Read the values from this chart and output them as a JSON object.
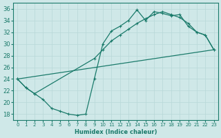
{
  "xlabel": "Humidex (Indice chaleur)",
  "xlim": [
    -0.5,
    23.5
  ],
  "ylim": [
    17,
    37
  ],
  "xticks": [
    0,
    1,
    2,
    3,
    4,
    5,
    6,
    7,
    8,
    9,
    10,
    11,
    12,
    13,
    14,
    15,
    16,
    17,
    18,
    19,
    20,
    21,
    22,
    23
  ],
  "yticks": [
    18,
    20,
    22,
    24,
    26,
    28,
    30,
    32,
    34,
    36
  ],
  "bg_color": "#cfe8e8",
  "grid_color": "#b8d8d8",
  "line_color": "#1a7a6a",
  "line1_x": [
    0,
    1,
    2,
    3,
    4,
    5,
    6,
    7,
    8,
    9,
    10,
    11,
    12,
    13,
    14,
    15,
    16,
    17,
    18,
    19,
    20,
    21,
    22,
    23
  ],
  "line1_y": [
    24.0,
    22.5,
    21.5,
    20.5,
    19.0,
    18.5,
    18.0,
    17.8,
    18.0,
    24.0,
    30.0,
    32.2,
    33.0,
    34.0,
    35.8,
    34.0,
    35.5,
    35.2,
    34.8,
    35.0,
    33.0,
    32.0,
    31.5,
    29.0
  ],
  "line2_x": [
    0,
    1,
    2,
    9,
    10,
    11,
    12,
    13,
    14,
    15,
    16,
    17,
    18,
    19,
    20,
    21,
    22,
    23
  ],
  "line2_y": [
    24.0,
    22.5,
    21.5,
    27.5,
    29.0,
    30.5,
    31.5,
    32.5,
    33.5,
    34.3,
    35.0,
    35.5,
    35.0,
    34.5,
    33.5,
    32.0,
    31.5,
    29.0
  ],
  "line3_x": [
    0,
    23
  ],
  "line3_y": [
    24.0,
    29.0
  ]
}
